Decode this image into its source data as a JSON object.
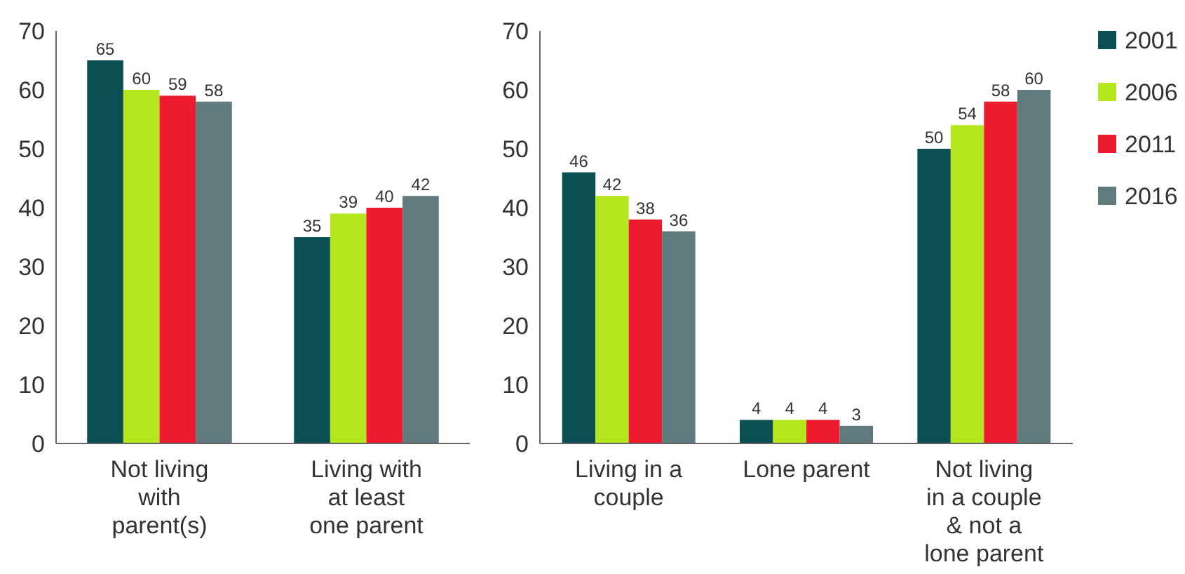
{
  "chart_data": [
    {
      "type": "bar",
      "categories": [
        "Not living with parent(s)",
        "Living with at least one parent"
      ],
      "series": [
        {
          "color": "#0b4f55",
          "values": [
            65,
            35
          ]
        },
        {
          "color": "#b3e61c",
          "values": [
            60,
            39
          ]
        },
        {
          "color": "#ee1b2e",
          "values": [
            59,
            40
          ]
        },
        {
          "color": "#607b7d",
          "values": [
            58,
            42
          ]
        }
      ],
      "ylim": [
        0,
        70
      ],
      "yticks": [
        0,
        10,
        20,
        30,
        40,
        50,
        60,
        70
      ],
      "data_labels": true,
      "grid": false
    },
    {
      "type": "bar",
      "categories": [
        "Living in a couple",
        "Lone parent",
        "Not living in a couple & not a lone parent"
      ],
      "series": [
        {
          "name": "2001",
          "color": "#0b4f55",
          "values": [
            46,
            4,
            50
          ]
        },
        {
          "name": "2006",
          "color": "#b3e61c",
          "values": [
            42,
            4,
            54
          ]
        },
        {
          "name": "2011",
          "color": "#ee1b2e",
          "values": [
            38,
            4,
            58
          ]
        },
        {
          "name": "2016",
          "color": "#607b7d",
          "values": [
            36,
            3,
            60
          ]
        }
      ],
      "ylim": [
        0,
        70
      ],
      "yticks": [
        0,
        10,
        20,
        30,
        40,
        50,
        60,
        70
      ],
      "data_labels": true,
      "grid": false,
      "legend": "right"
    }
  ]
}
